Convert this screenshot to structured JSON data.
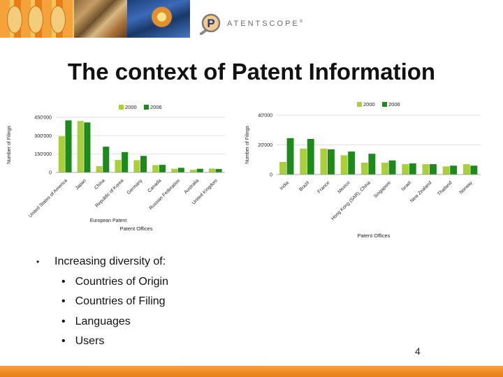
{
  "header": {
    "logo_icon": "magnifier-p-icon",
    "brand_primary": "P",
    "brand_rest": "ATENTSCOPE",
    "brand_mark": "®",
    "colors": {
      "orange": "#f08a1c",
      "white": "#ffffff"
    }
  },
  "slide": {
    "title": "The context of Patent Information",
    "bullet": "Increasing diversity of:",
    "sub_bullets": [
      "Countries of Origin",
      "Countries of Filing",
      "Languages",
      "Users"
    ],
    "page_number": "4"
  },
  "chart_data": [
    {
      "type": "bar",
      "ylabel": "Number of Filings",
      "xlabel": "Patent Offices",
      "ylim": [
        0,
        450000
      ],
      "yticks": [
        0,
        150000,
        300000,
        450000
      ],
      "ytick_labels": [
        "0",
        "150'000",
        "300'000",
        "450'000"
      ],
      "legend_position": "top",
      "grid": true,
      "categories": [
        "United States of America",
        "Japan",
        "China",
        "Republic of Korea",
        "Germany",
        "Canada",
        "Russian Federation",
        "Australia",
        "United Kingdom"
      ],
      "extra_label": "European Patent",
      "series": [
        {
          "name": "2000",
          "color": "#a9cf3c",
          "values": [
            295000,
            420000,
            52000,
            102000,
            100000,
            60000,
            30000,
            22000,
            32000
          ]
        },
        {
          "name": "2006",
          "color": "#1e8a1e",
          "values": [
            425000,
            408000,
            210000,
            166000,
            135000,
            62000,
            38000,
            30000,
            28000
          ]
        }
      ]
    },
    {
      "type": "bar",
      "ylabel": "Number of Filings",
      "xlabel": "Patent Offices",
      "ylim": [
        0,
        40000
      ],
      "yticks": [
        0,
        20000,
        40000
      ],
      "ytick_labels": [
        "0",
        "20'000",
        "40'000"
      ],
      "legend_position": "top",
      "grid": true,
      "categories": [
        "India",
        "Brazil",
        "France",
        "Mexico",
        "Hong Kong (SAR), China",
        "Singapore",
        "Israel",
        "New Zealand",
        "Thailand",
        "Norway"
      ],
      "series": [
        {
          "name": "2000",
          "color": "#a9cf3c",
          "values": [
            8500,
            17500,
            17500,
            13000,
            8000,
            8000,
            7000,
            7000,
            5500,
            7000
          ]
        },
        {
          "name": "2006",
          "color": "#1e8a1e",
          "values": [
            24500,
            24000,
            17000,
            15500,
            14000,
            9500,
            7500,
            7000,
            6000,
            6000
          ]
        }
      ]
    }
  ]
}
